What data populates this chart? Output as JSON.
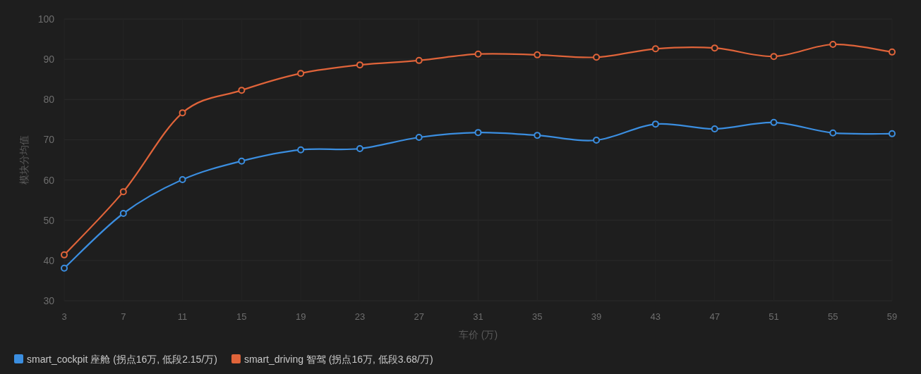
{
  "chart_data": {
    "type": "line",
    "xlabel": "车价 (万)",
    "ylabel": "模块分均值",
    "x": [
      3,
      7,
      11,
      15,
      19,
      23,
      27,
      31,
      35,
      39,
      43,
      47,
      51,
      55,
      59
    ],
    "xlim": [
      3,
      59
    ],
    "xticks": [
      3,
      7,
      11,
      15,
      19,
      23,
      27,
      31,
      35,
      39,
      43,
      47,
      51,
      55,
      59
    ],
    "ylim": [
      30,
      100
    ],
    "yticks": [
      30,
      40,
      50,
      60,
      70,
      80,
      90,
      100
    ],
    "grid": true,
    "legend": "bottom left",
    "marker": "circle",
    "line_style": "solid",
    "series": [
      {
        "name": "smart_cockpit 座舱 (拐点16万, 低段2.15/万)",
        "color": "#3b8ee0",
        "values": [
          38.1,
          51.7,
          60.1,
          64.7,
          67.5,
          67.8,
          70.6,
          71.8,
          71.1,
          69.9,
          73.9,
          72.7,
          74.3,
          71.7,
          71.5
        ]
      },
      {
        "name": "smart_driving 智驾 (拐点16万, 低段3.68/万)",
        "color": "#e0643a",
        "values": [
          41.4,
          57.1,
          76.7,
          82.3,
          86.5,
          88.6,
          89.7,
          91.3,
          91.1,
          90.5,
          92.6,
          92.8,
          90.7,
          93.7,
          91.8
        ]
      }
    ]
  }
}
